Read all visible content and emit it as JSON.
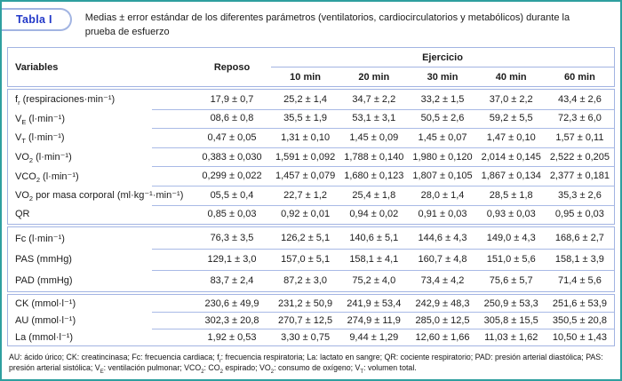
{
  "colors": {
    "frame_border": "#2e9f9f",
    "table_border": "#a2b4e2",
    "title_blue": "#2238c8",
    "text": "#1c1c1c"
  },
  "table_label": "Tabla I",
  "caption": "Medias ± error estándar de los diferentes parámetros (ventilatorios, cardiocirculatorios y metabólicos) durante la prueba de esfuerzo",
  "header": {
    "variables": "Variables",
    "reposo": "Reposo",
    "ejercicio": "Ejercicio",
    "time_columns": [
      "10 min",
      "20 min",
      "30 min",
      "40 min",
      "60 min"
    ]
  },
  "sections": [
    {
      "rows": [
        {
          "pre": "f",
          "sub": "r",
          "post": " (respiraciones·min⁻¹)",
          "values": [
            "17,9 ± 0,7",
            "25,2 ± 1,4",
            "34,7 ± 2,2",
            "33,2 ± 1,5",
            "37,0 ± 2,2",
            "43,4 ± 2,6"
          ]
        },
        {
          "pre": "V",
          "sub": "E",
          "post": " (l·min⁻¹)",
          "values": [
            "08,6 ± 0,8",
            "35,5 ± 1,9",
            "53,1 ± 3,1",
            "50,5 ± 2,6",
            "59,2 ± 5,5",
            "72,3 ± 6,0"
          ]
        },
        {
          "pre": "V",
          "sub": "T",
          "post": " (l·min⁻¹)",
          "values": [
            "0,47 ± 0,05",
            "1,31 ± 0,10",
            "1,45 ± 0,09",
            "1,45 ± 0,07",
            "1,47 ± 0,10",
            "1,57 ± 0,11"
          ]
        },
        {
          "pre": "VO",
          "sub": "2",
          "post": " (l·min⁻¹)",
          "values": [
            "0,383 ± 0,030",
            "1,591 ± 0,092",
            "1,788 ± 0,140",
            "1,980 ± 0,120",
            "2,014 ± 0,145",
            "2,522 ± 0,205"
          ]
        },
        {
          "pre": "VCO",
          "sub": "2",
          "post": " (l·min⁻¹)",
          "values": [
            "0,299 ± 0,022",
            "1,457 ± 0,079",
            "1,680 ± 0,123",
            "1,807 ± 0,105",
            "1,867 ± 0,134",
            "2,377 ± 0,181"
          ]
        },
        {
          "pre": "VO",
          "sub": "2",
          "post": " por masa corporal (ml·kg⁻¹·min⁻¹)",
          "values": [
            "05,5 ± 0,4",
            "22,7 ± 1,2",
            "25,4 ± 1,8",
            "28,0 ± 1,4",
            "28,5 ± 1,8",
            "35,3 ± 2,6"
          ]
        },
        {
          "pre": "QR",
          "sub": "",
          "post": "",
          "values": [
            "0,85 ± 0,03",
            "0,92 ± 0,01",
            "0,94 ± 0,02",
            "0,91 ± 0,03",
            "0,93 ± 0,03",
            "0,95 ± 0,03"
          ]
        }
      ]
    },
    {
      "rows": [
        {
          "pre": "Fc",
          "sub": "",
          "post": " (l·min⁻¹)",
          "values": [
            "76,3 ± 3,5",
            "126,2 ± 5,1",
            "140,6 ± 5,1",
            "144,6 ± 4,3",
            "149,0 ± 4,3",
            "168,6 ± 2,7"
          ]
        },
        {
          "pre": "PAS",
          "sub": "",
          "post": " (mmHg)",
          "values": [
            "129,1 ± 3,0",
            "157,0 ± 5,1",
            "158,1 ± 4,1",
            "160,7 ± 4,8",
            "151,0 ± 5,6",
            "158,1 ± 3,9"
          ]
        },
        {
          "pre": "PAD",
          "sub": "",
          "post": " (mmHg)",
          "values": [
            "83,7 ± 2,4",
            "87,2 ± 3,0",
            "75,2 ± 4,0",
            "73,4 ± 4,2",
            "75,6 ± 5,7",
            "71,4 ± 5,6"
          ]
        }
      ]
    },
    {
      "rows": [
        {
          "pre": "CK",
          "sub": "",
          "post": " (mmol·l⁻¹)",
          "values": [
            "230,6 ± 49,9",
            "231,2 ± 50,9",
            "241,9 ± 53,4",
            "242,9 ± 48,3",
            "250,9 ± 53,3",
            "251,6 ± 53,9"
          ]
        },
        {
          "pre": "AU",
          "sub": "",
          "post": " (mmol·l⁻¹)",
          "values": [
            "302,3 ± 20,8",
            "270,7 ± 12,5",
            "274,9 ± 11,9",
            "285,0 ± 12,5",
            "305,8 ± 15,5",
            "350,5 ± 20,8"
          ]
        },
        {
          "pre": "La",
          "sub": "",
          "post": " (mmol·l⁻¹)",
          "values": [
            "1,92 ± 0,53",
            "3,30 ± 0,75",
            "9,44 ± 1,29",
            "12,60 ± 1,66",
            "11,03 ± 1,62",
            "10,50 ± 1,43"
          ]
        }
      ]
    }
  ],
  "footnote_segments": [
    {
      "text": "AU: ácido úrico; CK: creatincinasa; Fc: frecuencia cardiaca; f",
      "sub": "r"
    },
    {
      "text": ": frecuencia respiratoria; La: lactato en sangre; QR: cociente respiratorio; PAD: presión arterial diastólica; PAS: presión arterial sistólica; V",
      "sub": "E"
    },
    {
      "text": ": ventilación pulmonar; VCO",
      "sub": "2"
    },
    {
      "text": ": CO",
      "sub": "2"
    },
    {
      "text": " espirado; VO",
      "sub": "2"
    },
    {
      "text": ": consumo de oxígeno; V",
      "sub": "T"
    },
    {
      "text": ": volumen total.",
      "sub": ""
    }
  ]
}
